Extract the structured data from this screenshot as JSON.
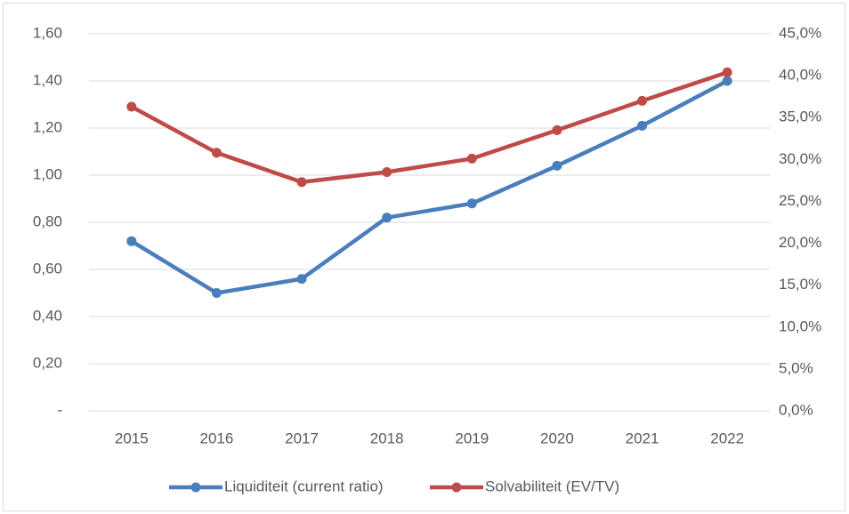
{
  "chart_data": {
    "type": "line",
    "categories": [
      "2015",
      "2016",
      "2017",
      "2018",
      "2019",
      "2020",
      "2021",
      "2022"
    ],
    "series": [
      {
        "name": "Liquiditeit (current ratio)",
        "color": "#4a7ebb",
        "values": [
          0.72,
          0.5,
          0.56,
          0.82,
          0.88,
          1.04,
          1.21,
          1.4
        ]
      },
      {
        "name": "Solvabiliteit (EV/TV)",
        "color": "#be4b48",
        "axis": "y2",
        "values": [
          36.3,
          30.8,
          27.3,
          28.5,
          30.1,
          33.5,
          37.0,
          40.4
        ]
      }
    ],
    "ylim": [
      0,
      1.6
    ],
    "yticks": [
      {
        "value": 0,
        "label": "-"
      },
      {
        "value": 0.2,
        "label": "0,20"
      },
      {
        "value": 0.4,
        "label": "0,40"
      },
      {
        "value": 0.6,
        "label": "0,60"
      },
      {
        "value": 0.8,
        "label": "0,80"
      },
      {
        "value": 1.0,
        "label": "1,00"
      },
      {
        "value": 1.2,
        "label": "1,20"
      },
      {
        "value": 1.4,
        "label": "1,40"
      },
      {
        "value": 1.6,
        "label": "1,60"
      }
    ],
    "y2lim": [
      0,
      45
    ],
    "y2ticks": [
      {
        "value": 0,
        "label": "0,0%"
      },
      {
        "value": 5,
        "label": "5,0%"
      },
      {
        "value": 10,
        "label": "10,0%"
      },
      {
        "value": 15,
        "label": "15,0%"
      },
      {
        "value": 20,
        "label": "20,0%"
      },
      {
        "value": 25,
        "label": "25,0%"
      },
      {
        "value": 30,
        "label": "30,0%"
      },
      {
        "value": 35,
        "label": "35,0%"
      },
      {
        "value": 40,
        "label": "40,0%"
      },
      {
        "value": 45,
        "label": "45,0%"
      }
    ],
    "grid": true,
    "legend": "bottom"
  }
}
